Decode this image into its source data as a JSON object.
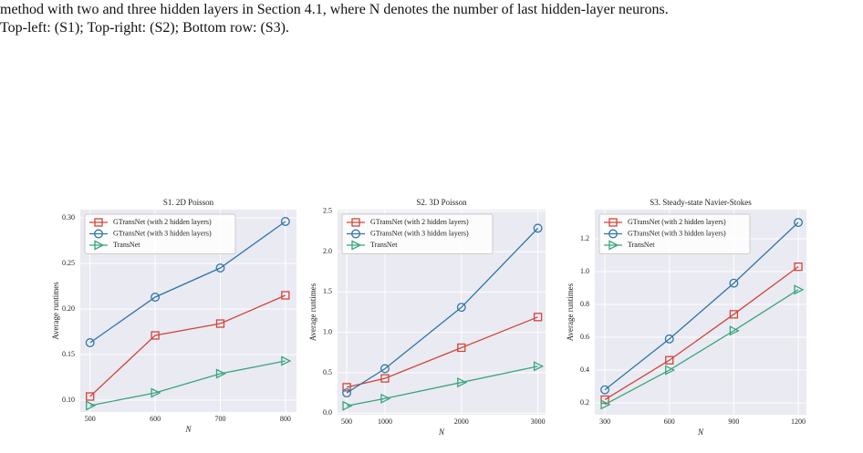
{
  "caption": [
    "method with two and three hidden layers in Section 4.1, where N denotes the number of last hidden-layer neurons.",
    "Top-left: (S1); Top-right: (S2); Bottom row: (S3)."
  ],
  "chart_data": [
    {
      "type": "line",
      "title": "S1. 2D Poisson",
      "x_label": "N",
      "y_label": "Average runtimes",
      "x": [
        500,
        600,
        700,
        800
      ],
      "xlim": [
        485,
        817
      ],
      "ylim": [
        0.087,
        0.309
      ],
      "xticks": [
        500,
        600,
        700,
        800
      ],
      "yticks": [
        {
          "value": 0.1,
          "label": "0.10"
        },
        0.15,
        {
          "value": 0.2,
          "label": "0.20"
        },
        0.25,
        {
          "value": 0.3,
          "label": "0.30"
        }
      ],
      "grid": true,
      "legend": "upper left",
      "series": [
        {
          "name": "GTransNet (with 2 hidden layers)",
          "color": "#d1453b",
          "marker": "square",
          "values": [
            0.104,
            0.171,
            0.184,
            0.215
          ]
        },
        {
          "name": "GTransNet (with 3 hidden layers)",
          "color": "#2e75a8",
          "marker": "circle",
          "values": [
            0.163,
            0.213,
            0.245,
            0.296
          ]
        },
        {
          "name": "TransNet",
          "color": "#3aa57c",
          "marker": "triangle-right",
          "values": [
            0.094,
            0.108,
            0.129,
            0.143
          ]
        }
      ]
    },
    {
      "type": "line",
      "title": "S2. 3D Poisson",
      "x_label": "N",
      "y_label": "Average runtimes",
      "x": [
        500,
        1000,
        2000,
        3000
      ],
      "xlim": [
        380,
        3100
      ],
      "ylim": [
        -0.02,
        2.52
      ],
      "xticks": [
        500,
        1000,
        2000,
        3000
      ],
      "yticks": [
        {
          "value": 0,
          "label": "0.0"
        },
        0.5,
        {
          "value": 1,
          "label": "1.0"
        },
        1.5,
        {
          "value": 2,
          "label": "2.0"
        },
        2.5
      ],
      "grid": true,
      "legend": "upper left",
      "series": [
        {
          "name": "GTransNet (with 2 hidden layers)",
          "color": "#d1453b",
          "marker": "square",
          "values": [
            0.32,
            0.43,
            0.81,
            1.19
          ]
        },
        {
          "name": "GTransNet (with 3 hidden layers)",
          "color": "#2e75a8",
          "marker": "circle",
          "values": [
            0.25,
            0.55,
            1.31,
            2.29
          ]
        },
        {
          "name": "TransNet",
          "color": "#3aa57c",
          "marker": "triangle-right",
          "values": [
            0.09,
            0.18,
            0.38,
            0.58
          ]
        }
      ]
    },
    {
      "type": "line",
      "title": "S3. Steady-state Navier-Stokes",
      "x_label": "N",
      "y_label": "Average runtimes",
      "x": [
        300,
        600,
        900,
        1200
      ],
      "xlim": [
        253,
        1238
      ],
      "ylim": [
        0.128,
        1.378
      ],
      "xticks": [
        300,
        600,
        900,
        1200
      ],
      "yticks": [
        0.2,
        0.4,
        0.6,
        0.8,
        {
          "value": 1,
          "label": "1.0"
        },
        1.2
      ],
      "grid": true,
      "legend": "upper left",
      "series": [
        {
          "name": "GTransNet (with 2 hidden layers)",
          "color": "#d1453b",
          "marker": "square",
          "values": [
            0.22,
            0.46,
            0.74,
            1.03
          ]
        },
        {
          "name": "GTransNet (with 3 hidden layers)",
          "color": "#2e75a8",
          "marker": "circle",
          "values": [
            0.28,
            0.59,
            0.93,
            1.3
          ]
        },
        {
          "name": "TransNet",
          "color": "#3aa57c",
          "marker": "triangle-right",
          "values": [
            0.19,
            0.4,
            0.64,
            0.89
          ]
        }
      ]
    }
  ]
}
